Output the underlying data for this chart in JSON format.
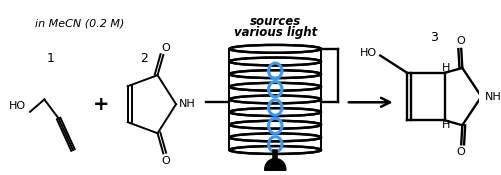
{
  "bg_color": "#ffffff",
  "blue_color": "#3399ff",
  "compound1_label": "1",
  "compound2_label": "2",
  "compound3_label": "3",
  "bottom_text": "in MeCN (0.2 M)",
  "apparatus_label_line1": "various light",
  "apparatus_label_line2": "sources",
  "figsize": [
    5.01,
    1.75
  ],
  "dpi": 100
}
